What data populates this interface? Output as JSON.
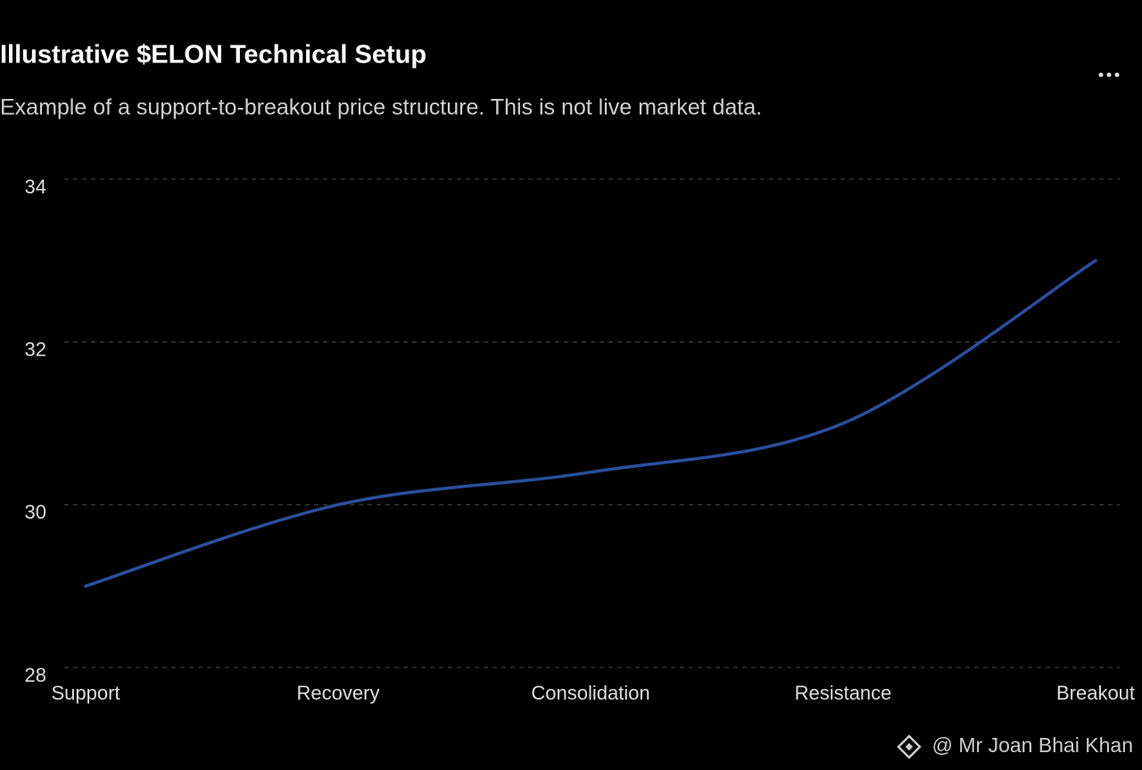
{
  "chart_data": {
    "type": "line",
    "title": "Illustrative $ELON Technical Setup",
    "subtitle": "Example of a support-to-breakout price structure. This is not live market data.",
    "categories": [
      "Support",
      "Recovery",
      "Consolidation",
      "Resistance",
      "Breakout"
    ],
    "values": [
      29,
      30,
      30.4,
      31,
      33
    ],
    "color": "#2b4e9c",
    "ylim": [
      28,
      34
    ],
    "yticks": [
      28,
      30,
      32,
      34
    ],
    "grid": true
  },
  "watermark": "@ Mr Joan Bhai Khan"
}
